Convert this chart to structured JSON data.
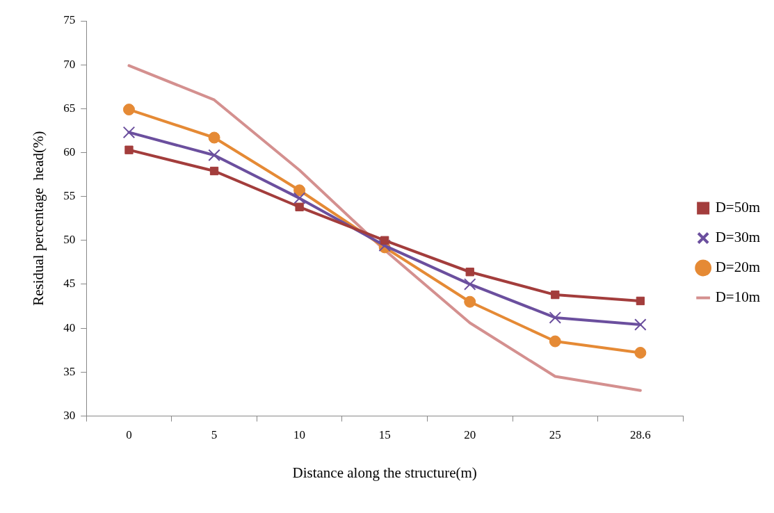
{
  "chart_data": {
    "type": "line",
    "xlabel": "Distance along the structure(m)",
    "ylabel": "Residual percentage  head(%)",
    "categories": [
      "0",
      "5",
      "10",
      "15",
      "20",
      "25",
      "28.6"
    ],
    "ylim": [
      30,
      75
    ],
    "yticks": [
      30,
      35,
      40,
      45,
      50,
      55,
      60,
      65,
      70,
      75
    ],
    "grid": false,
    "legend": "right",
    "series": [
      {
        "name": "D=50m",
        "color": "#a33d3c",
        "marker": "square",
        "values": [
          60.3,
          57.9,
          53.8,
          50.0,
          46.4,
          43.8,
          43.1
        ]
      },
      {
        "name": "D=30m",
        "color": "#6b4f9e",
        "marker": "cross",
        "values": [
          62.3,
          59.7,
          54.8,
          49.4,
          45.0,
          41.2,
          40.4
        ]
      },
      {
        "name": "D=20m",
        "color": "#e58a35",
        "marker": "circle",
        "values": [
          64.9,
          61.7,
          55.7,
          49.2,
          43.0,
          38.5,
          37.2
        ]
      },
      {
        "name": "D=10m",
        "color": "#d4908f",
        "marker": "none",
        "values": [
          69.9,
          66.0,
          58.0,
          48.9,
          40.6,
          34.5,
          32.9
        ]
      }
    ]
  }
}
